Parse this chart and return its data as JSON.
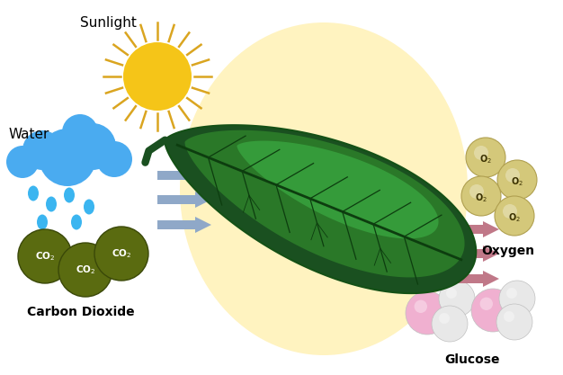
{
  "background_color": "#ffffff",
  "oval_color": "#FFF3C0",
  "sun_color": "#F5C518",
  "sun_ray_color": "#DAA520",
  "cloud_color": "#4AABF0",
  "rain_color": "#3BB5F0",
  "co2_color": "#5a6b10",
  "co2_edge_color": "#3a4808",
  "leaf_dark": "#1a5c1a",
  "leaf_mid": "#2a8030",
  "leaf_light": "#3aaa40",
  "leaf_vein": "#0d3d0f",
  "arrow_left_color": "#8FA8C8",
  "arrow_right_color": "#C07888",
  "o2_color": "#D4C87A",
  "o2_edge": "#B0A050",
  "o2_text": "#3a3000",
  "glucose_pink": "#F0B0D0",
  "glucose_white": "#E8E8E8",
  "glucose_edge": "#C0C0C0",
  "label_sunlight": "Sunlight",
  "label_water": "Water",
  "label_co2": "Carbon Dioxide",
  "label_oxygen": "Oxygen",
  "label_glucose": "Glucose"
}
